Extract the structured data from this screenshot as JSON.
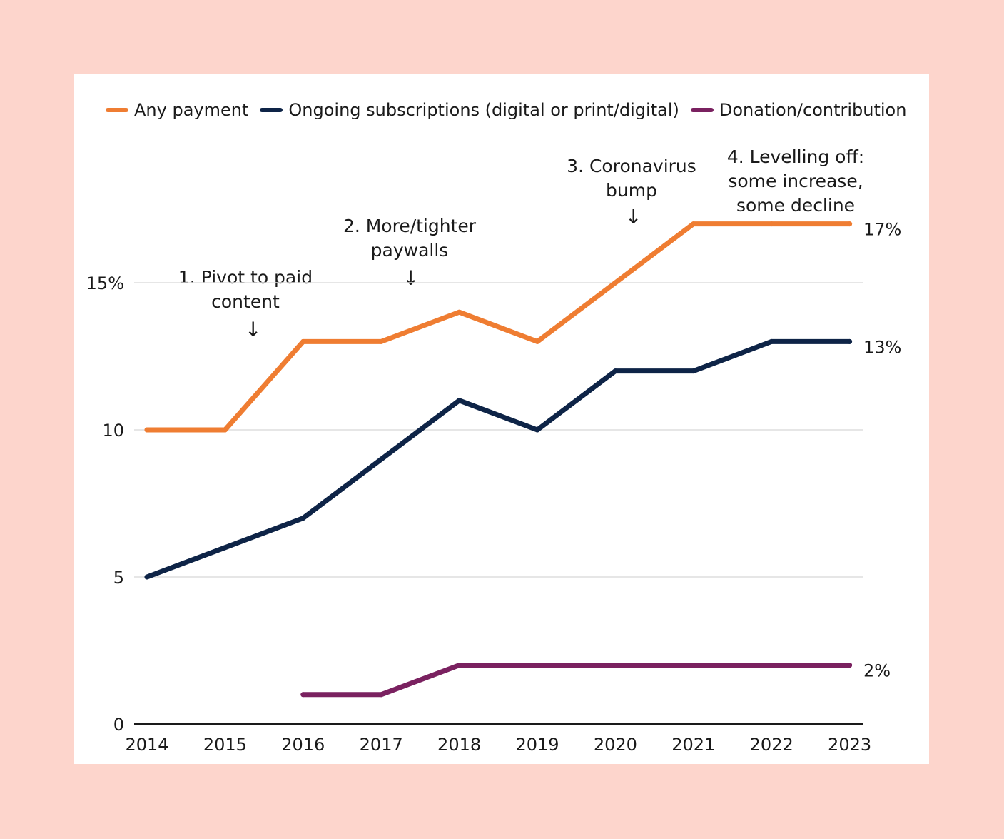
{
  "chart_data": {
    "type": "line",
    "x": [
      2014,
      2015,
      2016,
      2017,
      2018,
      2019,
      2020,
      2021,
      2022,
      2023
    ],
    "series": [
      {
        "name": "Any payment",
        "color": "#ef7d32",
        "values": [
          10,
          10,
          13,
          13,
          14,
          13,
          15,
          17,
          17,
          17
        ],
        "end_label": "17%"
      },
      {
        "name": "Ongoing subscriptions (digital or print/digital)",
        "color": "#0e2447",
        "values": [
          5,
          6,
          7,
          9,
          11,
          10,
          12,
          12,
          13,
          13
        ],
        "end_label": "13%"
      },
      {
        "name": "Donation/contribution",
        "color": "#7a2160",
        "values": [
          null,
          null,
          1,
          1,
          2,
          2,
          2,
          2,
          2,
          2
        ],
        "end_label": "2%"
      }
    ],
    "ylim": [
      0,
      17
    ],
    "y_ticks": [
      {
        "value": 0,
        "label": "0"
      },
      {
        "value": 5,
        "label": "5"
      },
      {
        "value": 10,
        "label": "10"
      },
      {
        "value": 15,
        "label": "15%"
      }
    ],
    "x_tick_labels": [
      "2014",
      "2015",
      "2016",
      "2017",
      "2018",
      "2019",
      "2020",
      "2021",
      "2022",
      "2023"
    ],
    "grid": true,
    "legend_position": "top",
    "annotations": [
      {
        "lines": [
          "1. Pivot to paid",
          "content"
        ],
        "x": 2015.3
      },
      {
        "lines": [
          "2. More/tighter",
          "paywalls"
        ],
        "x": 2017.35
      },
      {
        "lines": [
          "3. Coronavirus",
          "bump"
        ],
        "x": 2020.2
      },
      {
        "lines": [
          "4. Levelling off:",
          "some increase,",
          "some decline"
        ],
        "x": 2022.3
      }
    ]
  }
}
